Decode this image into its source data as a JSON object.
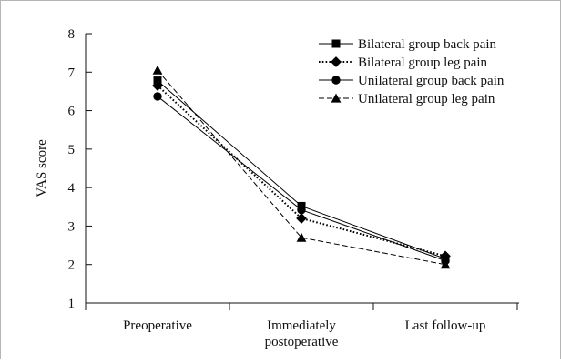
{
  "chart_data": {
    "type": "line",
    "title": "",
    "xlabel": "",
    "ylabel": "VAS score",
    "ylim": [
      1,
      8
    ],
    "yticks": [
      1,
      2,
      3,
      4,
      5,
      6,
      7,
      8
    ],
    "grid": false,
    "legend_position": "top-right",
    "categories": [
      [
        "Preoperative"
      ],
      [
        "Immediately",
        "postoperative"
      ],
      [
        "Last follow-up"
      ]
    ],
    "series": [
      {
        "name": "Bilateral group back pain",
        "values": [
          6.78,
          3.52,
          2.15
        ],
        "marker": "square",
        "line": "solid"
      },
      {
        "name": "Bilateral group leg pain",
        "values": [
          6.65,
          3.2,
          2.22
        ],
        "marker": "diamond",
        "line": "dotted"
      },
      {
        "name": "Unilateral group back pain",
        "values": [
          6.37,
          3.42,
          2.1
        ],
        "marker": "circle",
        "line": "solid"
      },
      {
        "name": "Unilateral group leg pain",
        "values": [
          7.05,
          2.7,
          2.0
        ],
        "marker": "triangle",
        "line": "dashed"
      }
    ]
  }
}
